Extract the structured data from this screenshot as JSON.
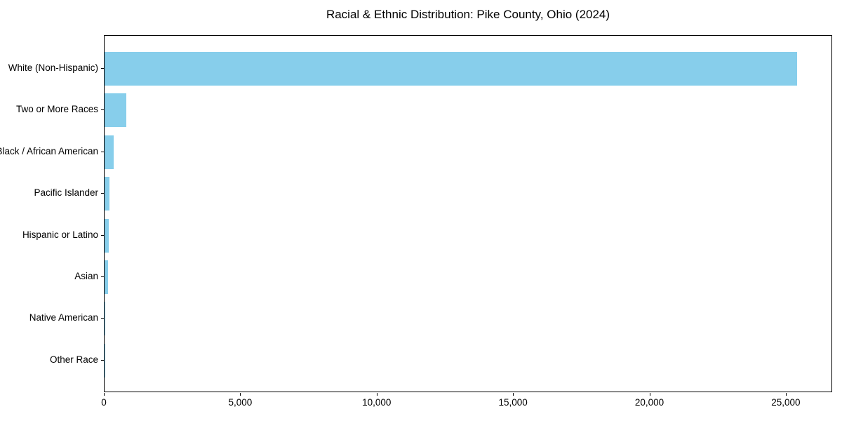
{
  "chart_data": {
    "type": "bar",
    "orientation": "horizontal",
    "title": "Racial & Ethnic Distribution: Pike County, Ohio (2024)",
    "categories": [
      "White (Non-Hispanic)",
      "Two or More Races",
      "Black / African American",
      "Pacific Islander",
      "Hispanic or Latino",
      "Asian",
      "Native American",
      "Other Race"
    ],
    "values": [
      25400,
      800,
      330,
      170,
      150,
      125,
      30,
      10
    ],
    "xlabel": "",
    "ylabel": "",
    "x_ticks": [
      0,
      5000,
      10000,
      15000,
      20000,
      25000
    ],
    "x_tick_labels": [
      "0",
      "5,000",
      "10,000",
      "15,000",
      "20,000",
      "25,000"
    ],
    "xlim": [
      0,
      26700
    ],
    "bar_color": "#87CEEB",
    "grid": false,
    "legend": null,
    "background_color": "#ffffff",
    "spine_color": "#000000"
  }
}
